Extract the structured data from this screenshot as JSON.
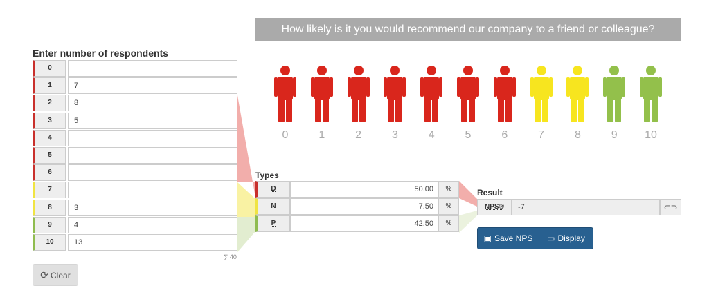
{
  "banner": {
    "question": "How likely is it you would recommend our company to a friend or colleague?"
  },
  "respondents": {
    "title": "Enter number of respondents",
    "rows": [
      {
        "score": "0",
        "count": ""
      },
      {
        "score": "1",
        "count": "7"
      },
      {
        "score": "2",
        "count": "8"
      },
      {
        "score": "3",
        "count": "5"
      },
      {
        "score": "4",
        "count": ""
      },
      {
        "score": "5",
        "count": ""
      },
      {
        "score": "6",
        "count": ""
      },
      {
        "score": "7",
        "count": ""
      },
      {
        "score": "8",
        "count": "3"
      },
      {
        "score": "9",
        "count": "4"
      },
      {
        "score": "10",
        "count": "13"
      }
    ],
    "sum_label": "∑ 40"
  },
  "clear_button": {
    "label": "Clear",
    "icon": "refresh-icon"
  },
  "scale": {
    "labels": [
      "0",
      "1",
      "2",
      "3",
      "4",
      "5",
      "6",
      "7",
      "8",
      "9",
      "10"
    ],
    "colors": {
      "detractor": "#d9261c",
      "neutral": "#f7e51f",
      "promoter": "#93c04b"
    }
  },
  "types": {
    "title": "Types",
    "rows": [
      {
        "key": "D",
        "value": "50.00",
        "unit": "%"
      },
      {
        "key": "N",
        "value": "7.50",
        "unit": "%"
      },
      {
        "key": "P",
        "value": "42.50",
        "unit": "%"
      }
    ]
  },
  "result": {
    "title": "Result",
    "key": "NPS®",
    "value": "-7",
    "toggle_icon": "link-icon"
  },
  "buttons": {
    "save_label": "Save NPS",
    "save_icon": "floppy-icon",
    "display_label": "Display",
    "display_icon": "monitor-icon"
  }
}
